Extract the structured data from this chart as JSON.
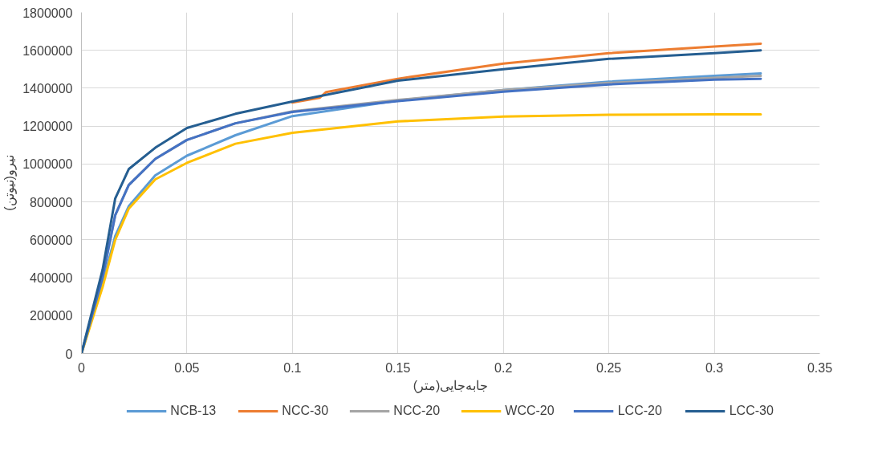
{
  "chart_data": {
    "type": "line",
    "xlabel": "جابه‌جایی(متر)",
    "ylabel": "نیرو(نیوتن)",
    "xlim": [
      0,
      0.35
    ],
    "xticks": [
      0,
      0.05,
      0.1,
      0.15,
      0.2,
      0.25,
      0.3,
      0.35
    ],
    "ylim": [
      0,
      1800000
    ],
    "yticks": [
      0,
      200000,
      400000,
      600000,
      800000,
      1000000,
      1200000,
      1400000,
      1600000,
      1800000
    ],
    "grid": true,
    "legend": "bottom",
    "marker": "none",
    "line_style": "solid",
    "series": [
      {
        "name": "NCB-13",
        "color": "#5b9bd5",
        "x": [
          0,
          0.01,
          0.016,
          0.0224,
          0.035,
          0.05,
          0.073,
          0.1,
          0.15,
          0.2,
          0.25,
          0.3,
          0.322
        ],
        "values": [
          0,
          370000,
          620000,
          777000,
          940000,
          1044000,
          1152000,
          1253000,
          1335000,
          1390000,
          1435000,
          1465000,
          1478000
        ]
      },
      {
        "name": "NCC-30",
        "color": "#ed7d31",
        "x": [
          0.1,
          0.113,
          0.116,
          0.15,
          0.2,
          0.25,
          0.3,
          0.322
        ],
        "values": [
          1325000,
          1350000,
          1380000,
          1450000,
          1530000,
          1585000,
          1620000,
          1635000
        ]
      },
      {
        "name": "NCC-20",
        "color": "#a5a5a5",
        "x": [
          0,
          0.01,
          0.016,
          0.0224,
          0.035,
          0.05,
          0.073,
          0.1,
          0.15,
          0.2,
          0.25,
          0.3,
          0.322
        ],
        "values": [
          0,
          400000,
          730000,
          889000,
          1027000,
          1127000,
          1215000,
          1278000,
          1338000,
          1390000,
          1428000,
          1455000,
          1465000
        ]
      },
      {
        "name": "WCC-20",
        "color": "#ffc000",
        "x": [
          0,
          0.01,
          0.016,
          0.0224,
          0.035,
          0.05,
          0.073,
          0.1,
          0.15,
          0.2,
          0.25,
          0.3,
          0.322
        ],
        "values": [
          0,
          350000,
          600000,
          764000,
          919000,
          1006000,
          1107000,
          1165000,
          1225000,
          1250000,
          1260000,
          1262000,
          1262000
        ]
      },
      {
        "name": "LCC-20",
        "color": "#4472c4",
        "x": [
          0,
          0.01,
          0.016,
          0.0224,
          0.035,
          0.05,
          0.073,
          0.1,
          0.15,
          0.2,
          0.25,
          0.3,
          0.322
        ],
        "values": [
          0,
          400000,
          730000,
          889000,
          1027000,
          1127000,
          1215000,
          1275000,
          1332000,
          1382000,
          1420000,
          1445000,
          1450000
        ]
      },
      {
        "name": "LCC-30",
        "color": "#255e91",
        "x": [
          0,
          0.01,
          0.016,
          0.0224,
          0.035,
          0.05,
          0.073,
          0.1,
          0.15,
          0.2,
          0.25,
          0.3,
          0.322
        ],
        "values": [
          0,
          442000,
          818000,
          973000,
          1086000,
          1190000,
          1265000,
          1330000,
          1440000,
          1500000,
          1555000,
          1585000,
          1600000
        ]
      }
    ]
  }
}
